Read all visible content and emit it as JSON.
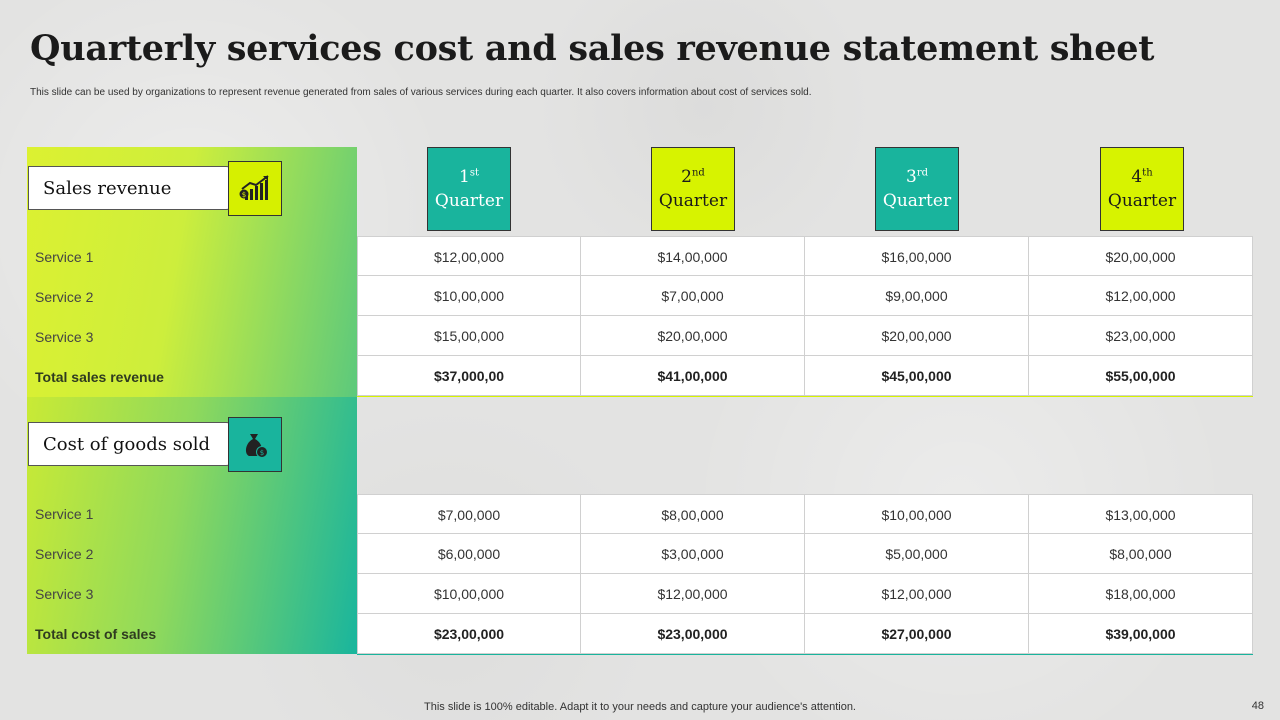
{
  "header": {
    "title": "Quarterly services cost and sales revenue statement sheet",
    "subtitle": "This slide can be used by organizations to represent revenue generated from sales of various services during each quarter. It also covers information about cost of services sold."
  },
  "quarters": [
    {
      "num": "1",
      "sup": "st",
      "label": "Quarter",
      "color": "#19b49d"
    },
    {
      "num": "2",
      "sup": "nd",
      "label": "Quarter",
      "color": "#d7f300"
    },
    {
      "num": "3",
      "sup": "rd",
      "label": "Quarter",
      "color": "#19b49d"
    },
    {
      "num": "4",
      "sup": "th",
      "label": "Quarter",
      "color": "#d7f300"
    }
  ],
  "sales_revenue": {
    "heading": "Sales revenue",
    "icon": "growth-chart-icon",
    "rows": [
      {
        "label": "Service 1",
        "values": [
          "$12,00,000",
          "$14,00,000",
          "$16,00,000",
          "$20,00,000"
        ]
      },
      {
        "label": "Service 2",
        "values": [
          "$10,00,000",
          "$7,00,000",
          "$9,00,000",
          "$12,00,000"
        ]
      },
      {
        "label": "Service 3",
        "values": [
          "$15,00,000",
          "$20,00,000",
          "$20,00,000",
          "$23,00,000"
        ]
      },
      {
        "label": "Total sales revenue",
        "values": [
          "$37,000,00",
          "$41,00,000",
          "$45,00,000",
          "$55,00,000"
        ]
      }
    ]
  },
  "cost_of_goods": {
    "heading": "Cost of goods sold",
    "icon": "money-bag-icon",
    "rows": [
      {
        "label": "Service 1",
        "values": [
          "$7,00,000",
          "$8,00,000",
          "$10,00,000",
          "$13,00,000"
        ]
      },
      {
        "label": "Service 2",
        "values": [
          "$6,00,000",
          "$3,00,000",
          "$5,00,000",
          "$8,00,000"
        ]
      },
      {
        "label": "Service 3",
        "values": [
          "$10,00,000",
          "$12,00,000",
          "$12,00,000",
          "$18,00,000"
        ]
      },
      {
        "label": "Total cost of sales",
        "values": [
          "$23,00,000",
          "$23,00,000",
          "$27,00,000",
          "$39,00,000"
        ]
      }
    ]
  },
  "footer": {
    "note": "This slide is 100% editable. Adapt it to your needs and capture your audience's attention.",
    "page_number": "48"
  },
  "colors": {
    "accent_teal": "#19b49d",
    "accent_lime": "#d7f300"
  }
}
